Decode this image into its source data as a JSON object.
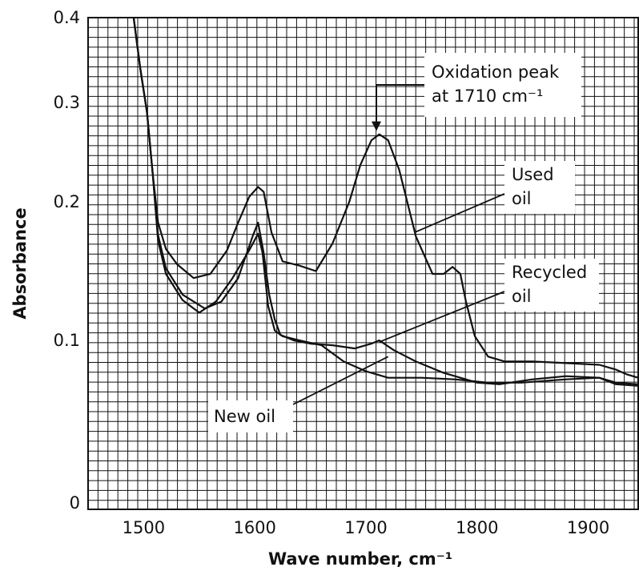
{
  "chart_data": {
    "type": "line",
    "title": "",
    "xlabel": "Wave number, cm⁻¹",
    "ylabel": "Absorbance",
    "xlim": [
      1450,
      1945
    ],
    "x_ticks": [
      1500,
      1600,
      1700,
      1800,
      1900
    ],
    "y_ticks": [
      {
        "value": 0,
        "label": "0"
      },
      {
        "value": 0.1,
        "label": "0.1"
      },
      {
        "value": 0.2,
        "label": "0.2"
      },
      {
        "value": 0.3,
        "label": "0.3"
      },
      {
        "value": 0.4,
        "label": "0.4"
      }
    ],
    "grid": true,
    "series": [
      {
        "name": "Used oil",
        "x": [
          1491,
          1497,
          1503,
          1508,
          1513,
          1520,
          1530,
          1545,
          1560,
          1575,
          1585,
          1595,
          1603,
          1608,
          1615,
          1625,
          1640,
          1655,
          1670,
          1685,
          1695,
          1705,
          1712,
          1720,
          1730,
          1745,
          1760,
          1770,
          1778,
          1785,
          1790,
          1798,
          1810,
          1825,
          1850,
          1880,
          1910,
          1925,
          1935,
          1945
        ],
        "y": [
          0.4,
          0.34,
          0.29,
          0.23,
          0.185,
          0.166,
          0.155,
          0.145,
          0.148,
          0.165,
          0.185,
          0.205,
          0.215,
          0.21,
          0.178,
          0.157,
          0.154,
          0.15,
          0.17,
          0.2,
          0.237,
          0.262,
          0.268,
          0.262,
          0.232,
          0.175,
          0.148,
          0.148,
          0.153,
          0.148,
          0.128,
          0.103,
          0.09,
          0.087,
          0.087,
          0.086,
          0.085,
          0.082,
          0.079,
          0.077
        ]
      },
      {
        "name": "Recycled oil",
        "x": [
          1491,
          1497,
          1503,
          1508,
          1513,
          1520,
          1535,
          1555,
          1570,
          1585,
          1598,
          1603,
          1608,
          1613,
          1618,
          1623,
          1635,
          1650,
          1670,
          1690,
          1705,
          1712,
          1725,
          1745,
          1770,
          1800,
          1820,
          1850,
          1880,
          1910,
          1925,
          1945
        ],
        "y": [
          0.4,
          0.34,
          0.29,
          0.23,
          0.176,
          0.152,
          0.133,
          0.123,
          0.128,
          0.145,
          0.175,
          0.185,
          0.163,
          0.133,
          0.115,
          0.104,
          0.1,
          0.098,
          0.097,
          0.095,
          0.098,
          0.1,
          0.094,
          0.087,
          0.08,
          0.074,
          0.073,
          0.076,
          0.078,
          0.077,
          0.073,
          0.072
        ]
      },
      {
        "name": "New oil",
        "x": [
          1491,
          1497,
          1503,
          1508,
          1513,
          1520,
          1535,
          1550,
          1565,
          1580,
          1595,
          1603,
          1607,
          1612,
          1618,
          1625,
          1640,
          1660,
          1680,
          1700,
          1720,
          1750,
          1780,
          1810,
          1840,
          1880,
          1910,
          1925,
          1945
        ],
        "y": [
          0.4,
          0.34,
          0.29,
          0.23,
          0.172,
          0.148,
          0.129,
          0.12,
          0.128,
          0.145,
          0.165,
          0.177,
          0.163,
          0.125,
          0.107,
          0.103,
          0.1,
          0.097,
          0.087,
          0.081,
          0.077,
          0.077,
          0.076,
          0.074,
          0.074,
          0.076,
          0.077,
          0.074,
          0.073
        ]
      }
    ],
    "annotations": [
      {
        "lines": [
          "Oxidation peak",
          "at 1710 cm⁻¹"
        ],
        "target": {
          "x": 1710,
          "y": 0.268
        }
      },
      {
        "lines": [
          "Used",
          "oil"
        ],
        "target": {
          "x": 1744,
          "y": 0.178
        }
      },
      {
        "lines": [
          "Recycled",
          "oil"
        ],
        "target": {
          "x": 1712,
          "y": 0.099
        }
      },
      {
        "lines": [
          "New oil"
        ],
        "target": {
          "x": 1720,
          "y": 0.09
        }
      }
    ]
  }
}
